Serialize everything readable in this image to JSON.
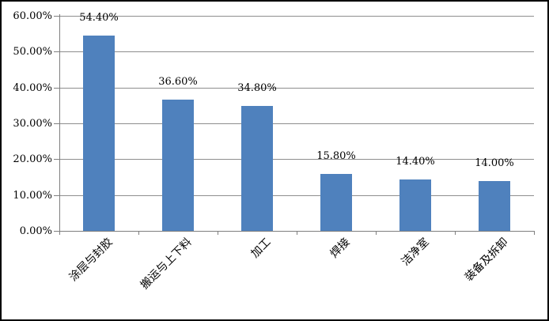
{
  "chart_data": {
    "type": "bar",
    "title": "",
    "xlabel": "",
    "ylabel": "",
    "categories": [
      "涂层与封胶",
      "搬运与上下料",
      "加工",
      "焊接",
      "洁净室",
      "装备及拆卸"
    ],
    "values": [
      54.4,
      36.6,
      34.8,
      15.8,
      14.4,
      14.0
    ],
    "value_labels": [
      "54.40%",
      "36.60%",
      "34.80%",
      "15.80%",
      "14.40%",
      "14.00%"
    ],
    "ylim": [
      0,
      60
    ],
    "ytick_values": [
      0,
      10,
      20,
      30,
      40,
      50,
      60
    ],
    "ytick_labels": [
      "0.00%",
      "10.00%",
      "20.00%",
      "30.00%",
      "40.00%",
      "50.00%",
      "60.00%"
    ],
    "grid": true,
    "legend": false,
    "colors": {
      "bar_fill": "#4f81bd",
      "gridline": "#8e8e8e",
      "axis": "#7f7f7f",
      "text": "#000000",
      "frame_border": "#000000",
      "background": "#ffffff"
    }
  }
}
